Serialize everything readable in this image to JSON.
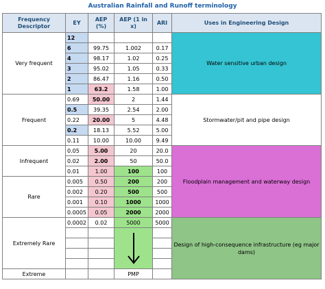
{
  "title": "Australian Rainfall and Runoff terminology",
  "table": {
    "headers": [
      "Frequency Descriptor",
      "EY",
      "AEP (%)",
      "AEP (1 in x)",
      "ARI",
      "Uses in Engineering Design"
    ],
    "groups": [
      {
        "descriptor": "Very frequent",
        "rows": [
          [
            "12",
            null,
            null,
            null
          ],
          [
            "6",
            "99.75",
            "1.002",
            "0.17"
          ],
          [
            "4",
            "98.17",
            "1.02",
            "0.25"
          ],
          [
            "3",
            "95.02",
            "1.05",
            "0.33"
          ],
          [
            "2",
            "86.47",
            "1.16",
            "0.50"
          ],
          [
            "1",
            "63.2",
            "1.58",
            "1.00"
          ]
        ]
      },
      {
        "descriptor": "Frequent",
        "rows": [
          [
            "0.69",
            "50.00",
            "2",
            "1.44"
          ],
          [
            "0.5",
            "39.35",
            "2.54",
            "2.00"
          ],
          [
            "0.22",
            "20.00",
            "5",
            "4.48"
          ],
          [
            "0.2",
            "18.13",
            "5.52",
            "5.00"
          ],
          [
            "0.11",
            "10.00",
            "10.00",
            "9.49"
          ]
        ]
      },
      {
        "descriptor": "Infrequent",
        "rows": [
          [
            "0.05",
            "5.00",
            "20",
            "20.0"
          ],
          [
            "0.02",
            "2.00",
            "50",
            "50.0"
          ],
          [
            "0.01",
            "1.00",
            "100",
            "100"
          ]
        ]
      },
      {
        "descriptor": "Rare",
        "rows": [
          [
            "0.005",
            "0.50",
            "200",
            "200"
          ],
          [
            "0.002",
            "0.20",
            "500",
            "500"
          ],
          [
            "0.001",
            "0.10",
            "1000",
            "1000"
          ],
          [
            "0.0005",
            "0.05",
            "2000",
            "2000"
          ]
        ]
      },
      {
        "descriptor": "Extremely Rare",
        "rows": [
          [
            "0.0002",
            "0.02",
            "5000",
            "5000"
          ],
          [
            null,
            null,
            null,
            null
          ],
          [
            null,
            null,
            null,
            null
          ],
          [
            null,
            null,
            null,
            null
          ],
          [
            null,
            null,
            null,
            null
          ]
        ]
      },
      {
        "descriptor": "Extreme",
        "rows": [
          [
            null,
            null,
            "PMP",
            null
          ]
        ]
      }
    ],
    "uses": [
      "Water sensitive urban design",
      "Stormwater/pit and pipe design",
      "Floodplain management and waterway design",
      "Design of high-consequence infrastructure (eg major dams)"
    ]
  }
}
